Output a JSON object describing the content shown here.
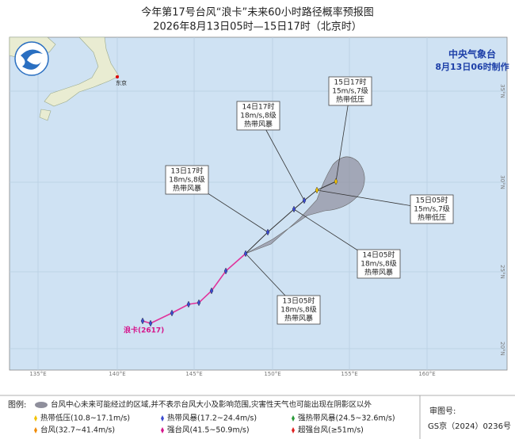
{
  "header": {
    "title": "今年第17号台风“浪卡”未来60小时路径概率预报图",
    "subtitle": "2026年8月13日05时—15日17时（北京时）"
  },
  "agency": {
    "name": "中央气象台",
    "issued": "8月13日06时制作"
  },
  "map": {
    "city": "东京",
    "typhoon_label": "浪卡(2617)",
    "lat_labels": [
      "35°N",
      "30°N",
      "25°N",
      "20°N"
    ],
    "lon_labels": [
      "135°E",
      "140°E",
      "145°E",
      "150°E",
      "155°E",
      "160°E"
    ],
    "callouts": [
      [
        "15日17时",
        "15m/s,7级",
        "热带低压"
      ],
      [
        "14日17时",
        "18m/s,8级",
        "热带风暴"
      ],
      [
        "13日17时",
        "18m/s,8级",
        "热带风暴"
      ],
      [
        "15日05时",
        "15m/s,7级",
        "热带低压"
      ],
      [
        "14日05时",
        "18m/s,8级",
        "热带风暴"
      ],
      [
        "13日05时",
        "18m/s,8级",
        "热带风暴"
      ]
    ]
  },
  "legend": {
    "title": "图例:",
    "cone": "台风中心未来可能经过的区域,并不表示台风大小及影响范围,灾害性天气也可能出现在阴影区以外",
    "items": [
      "热带低压(10.8~17.1m/s)",
      "热带风暴(17.2~24.4m/s)",
      "强热带风暴(24.5~32.6m/s)",
      "台风(32.7~41.4m/s)",
      "强台风(41.5~50.9m/s)",
      "超强台风(≥51m/s)"
    ],
    "review_label": "审图号:",
    "review_number": "GS京（2024）0236号"
  }
}
